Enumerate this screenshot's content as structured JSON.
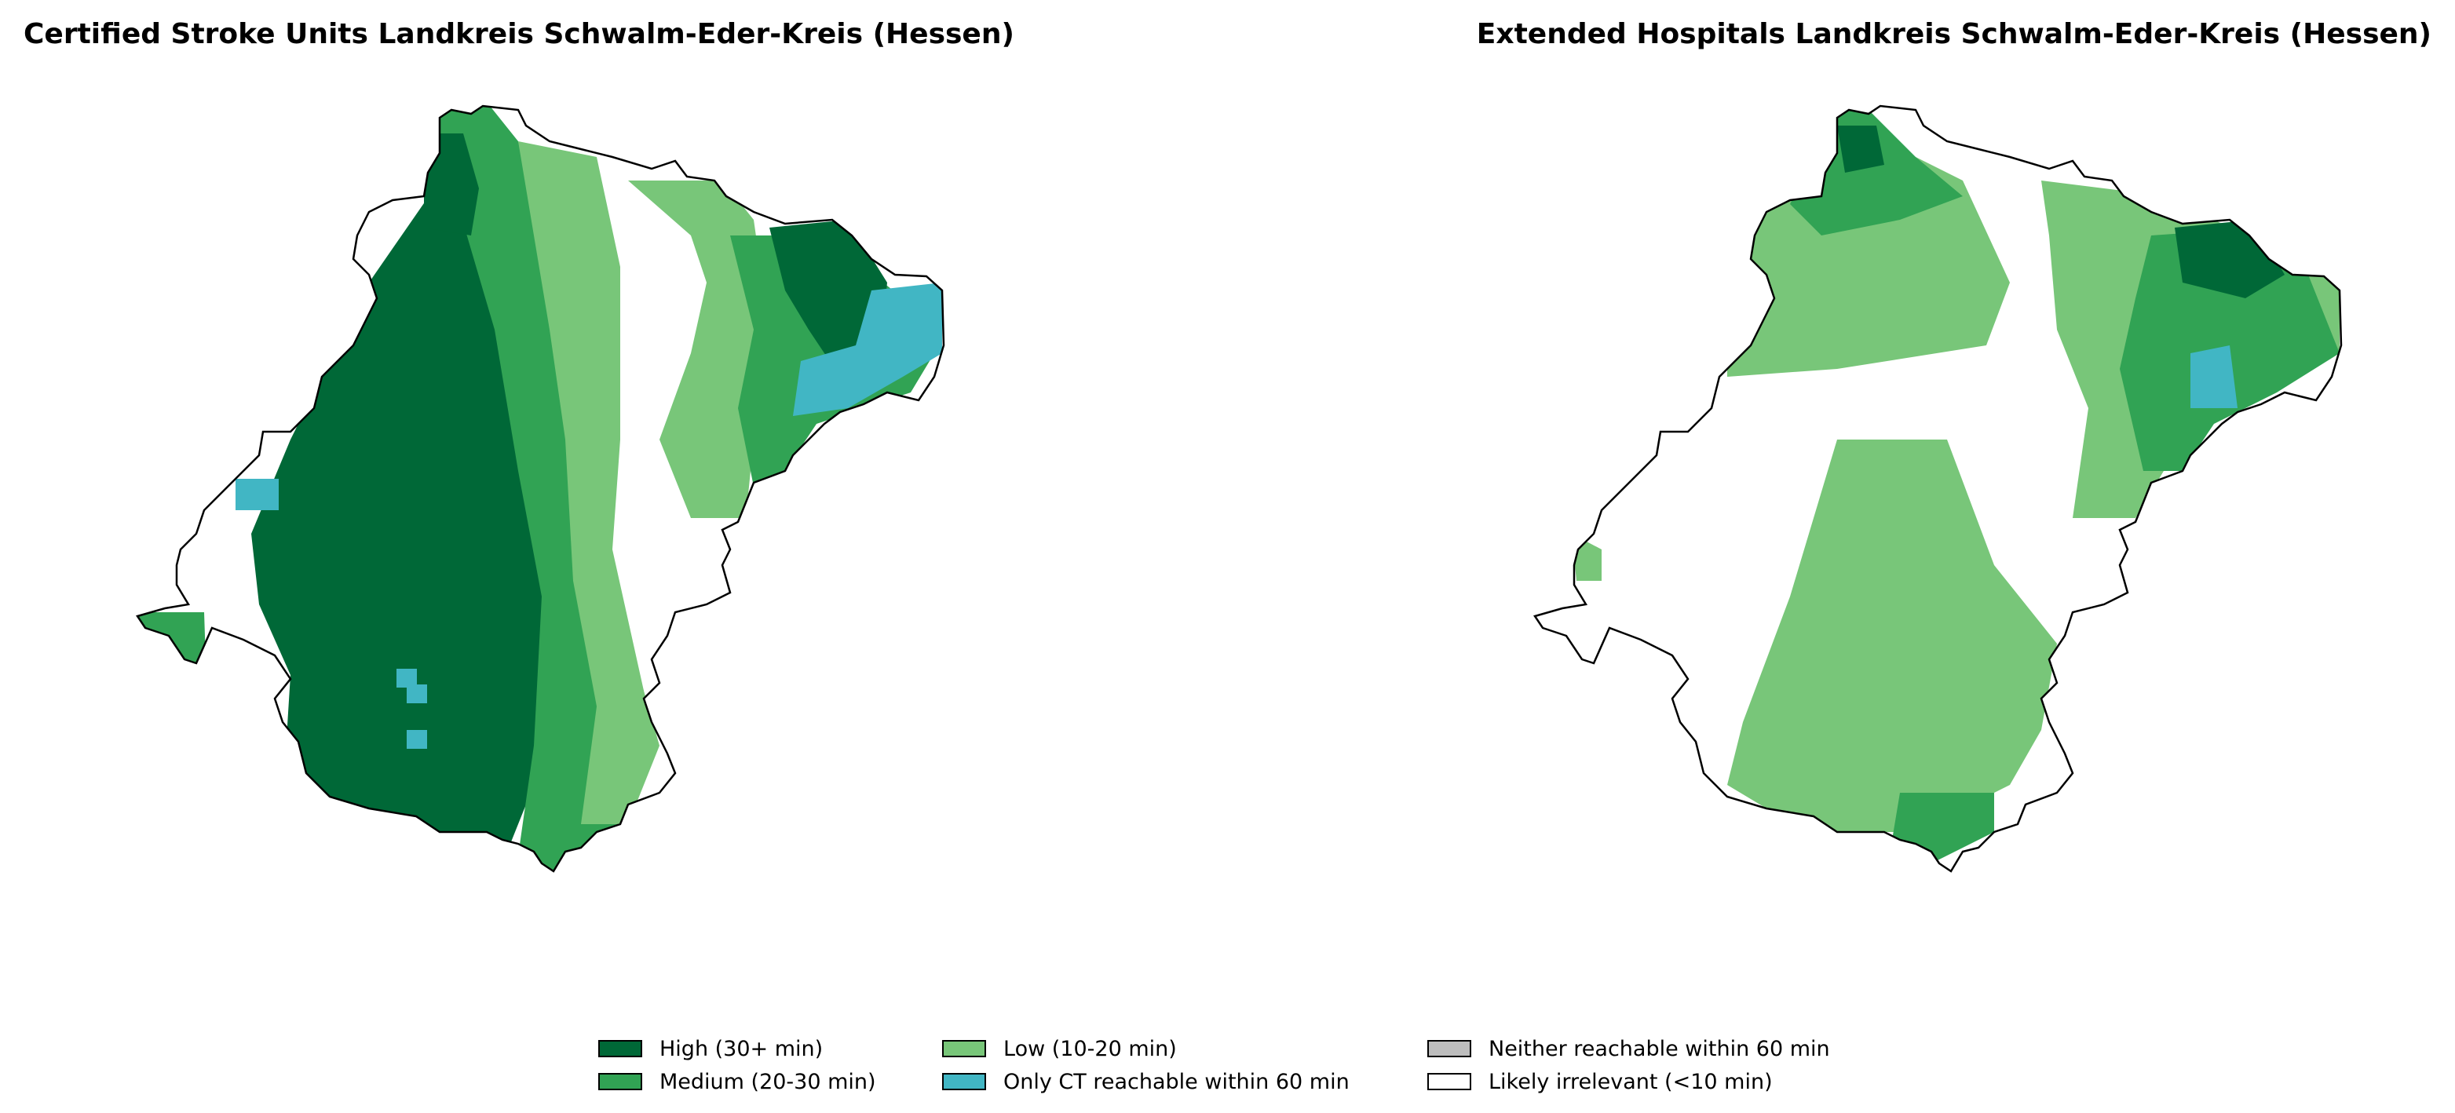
{
  "maps": [
    {
      "title": "Certified Stroke Units Landkreis Schwalm-Eder-Kreis (Hessen)"
    },
    {
      "title": "Extended Hospitals Landkreis Schwalm-Eder-Kreis (Hessen)"
    }
  ],
  "legend": [
    {
      "label": "High (30+ min)",
      "color": "#006837"
    },
    {
      "label": "Medium (20-30 min)",
      "color": "#31a354"
    },
    {
      "label": "Low (10-20 min)",
      "color": "#78c679"
    },
    {
      "label": "Only CT reachable within 60 min",
      "color": "#41b6c4"
    },
    {
      "label": "Neither reachable within 60 min",
      "color": "#bdbdbd"
    },
    {
      "label": "Likely irrelevant (<10 min)",
      "color": "#ffffff"
    }
  ]
}
